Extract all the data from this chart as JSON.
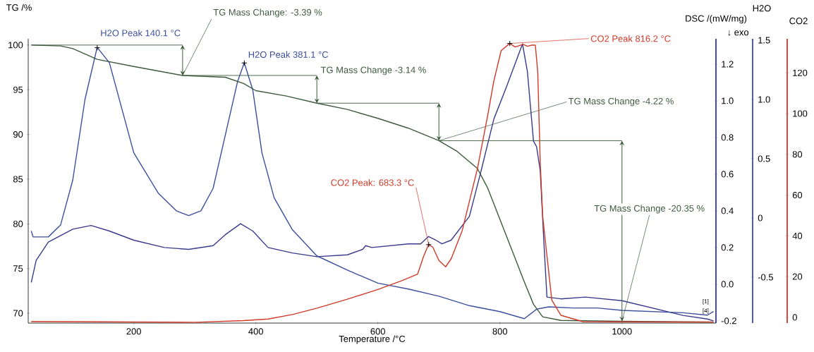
{
  "chart_data": [
    {
      "type": "line",
      "xlabel": "Temperature /°C",
      "ylabel": "TG /%",
      "y2label": "DSC /(mW/mg)",
      "y3label": "H2O",
      "xlim": [
        27,
        1154
      ],
      "xticks": [
        200,
        400,
        600,
        800,
        1000
      ],
      "ylim": [
        68.9,
        100.7
      ],
      "yticks": [
        70,
        75,
        80,
        85,
        90,
        95,
        100
      ],
      "y2lim": [
        -0.212,
        1.338
      ],
      "y2ticks": [
        -0.2,
        {
          "value": 0,
          "label": "0.0"
        },
        0.2,
        0.4,
        0.6,
        0.8,
        {
          "value": 1,
          "label": "1.0"
        },
        1.2
      ],
      "y3lim": [
        -0.887,
        1.512
      ],
      "y3ticks": [
        -0.5,
        0,
        0.5,
        {
          "value": 1,
          "label": "1.0"
        },
        1.5
      ],
      "series": [
        {
          "axis": "y",
          "color": "#3c5a3c",
          "x": [
            32,
            80,
            100,
            140,
            200,
            280,
            350,
            380,
            400,
            450,
            500,
            550,
            600,
            650,
            700,
            730,
            763,
            780,
            800,
            820,
            840,
            855,
            870,
            900,
            1000,
            1150
          ],
          "values": [
            100,
            99.9,
            99.6,
            98.4,
            97.6,
            96.6,
            96.4,
            95.7,
            94.9,
            94.3,
            93.5,
            92.8,
            91.8,
            90.7,
            89.3,
            88.1,
            86.2,
            84,
            80.5,
            77,
            73.5,
            71,
            69.6,
            69.2,
            69.1,
            69.0
          ]
        },
        {
          "axis": "y2",
          "color": "#3a3a8c",
          "x": [
            32,
            40,
            60,
            100,
            130,
            160,
            200,
            250,
            290,
            330,
            350,
            375,
            395,
            420,
            460,
            500,
            550,
            575,
            580,
            590,
            650,
            670,
            683,
            695,
            705,
            720,
            750,
            767,
            790,
            810,
            837,
            845,
            850,
            855,
            860,
            866,
            872,
            877,
            900,
            940,
            1000,
            1050,
            1100,
            1140,
            1150
          ],
          "values": [
            0.01,
            0.13,
            0.23,
            0.3,
            0.32,
            0.29,
            0.24,
            0.2,
            0.19,
            0.21,
            0.27,
            0.33,
            0.29,
            0.2,
            0.17,
            0.15,
            0.16,
            0.19,
            0.21,
            0.2,
            0.22,
            0.22,
            0.26,
            0.24,
            0.22,
            0.24,
            0.37,
            0.59,
            0.9,
            1.07,
            1.31,
            1.16,
            0.97,
            0.78,
            0.75,
            0.62,
            0.23,
            -0.07,
            -0.08,
            -0.07,
            -0.09,
            -0.13,
            -0.17,
            -0.19,
            -0.2
          ]
        },
        {
          "axis": "y3",
          "color": "#3c4f9c",
          "x": [
            32,
            35,
            40,
            60,
            80,
            100,
            120,
            140,
            160,
            180,
            200,
            240,
            270,
            290,
            310,
            330,
            350,
            370,
            381,
            395,
            410,
            430,
            460,
            500,
            550,
            600,
            650,
            700,
            750,
            800,
            840,
            860,
            880,
            920,
            960,
            1000,
            1050,
            1100,
            1140,
            1150
          ],
          "values": [
            -0.11,
            -0.16,
            -0.16,
            -0.16,
            -0.06,
            0.32,
            1.0,
            1.44,
            1.31,
            0.93,
            0.55,
            0.21,
            0.06,
            0.02,
            0.06,
            0.25,
            0.7,
            1.15,
            1.31,
            1.08,
            0.55,
            0.17,
            -0.1,
            -0.32,
            -0.44,
            -0.55,
            -0.6,
            -0.66,
            -0.74,
            -0.79,
            -0.85,
            -0.77,
            -0.75,
            -0.76,
            -0.76,
            -0.78,
            -0.79,
            -0.8,
            -0.82,
            -0.79
          ]
        }
      ],
      "annotations": [
        {
          "text": "TG Mass Change: -3.39 %",
          "x": 280,
          "y": 96.6
        },
        {
          "text": "TG Mass Change -3.14 %",
          "x": 500,
          "y": 93.5
        },
        {
          "text": "TG Mass Change -4.22 %",
          "x": 700,
          "y": 89.3
        },
        {
          "text": "TG Mass Change -20.35 %",
          "x": 1000,
          "y": 69.1
        },
        {
          "text": "H2O Peak 140.1 °C",
          "x": 140.1,
          "y": 99.7
        },
        {
          "text": "H2O Peak 381.1 °C",
          "x": 381.1,
          "y": 98.0
        },
        "↓ exo",
        "[1]",
        "[4]"
      ]
    },
    {
      "type": "line",
      "ylabel": "CO2",
      "tick_labels": "y",
      "annotations": [
        {
          "text": "CO2 Peak: 683.3 °C",
          "x": 683.3,
          "y": 35.7
        },
        {
          "text": "CO2 Peak 816.2 °C",
          "x": 816.2,
          "y": 134.4
        }
      ],
      "xlim": [
        27,
        1154
      ],
      "ylim": [
        -2.8,
        136.7
      ],
      "yticks": [
        0,
        20,
        40,
        60,
        80,
        100,
        120
      ],
      "series": [
        {
          "color": "#d03a2a",
          "x": [
            32,
            100,
            200,
            300,
            380,
            420,
            460,
            500,
            550,
            600,
            640,
            665,
            675,
            683,
            690,
            700,
            711,
            720,
            738,
            763,
            780,
            790,
            802,
            816,
            825,
            838,
            845,
            852,
            858,
            862,
            866,
            870,
            876,
            885,
            900,
            936,
            1000,
            1100,
            1150
          ],
          "values": [
            -2,
            -2.1,
            -2.3,
            -2.4,
            -1.6,
            -0.8,
            1.4,
            4.5,
            8.9,
            13.7,
            18.1,
            21.2,
            30,
            35.7,
            34.5,
            27.9,
            24.8,
            28.7,
            42.4,
            72.8,
            99.2,
            116,
            130.9,
            134.4,
            132.7,
            134,
            133,
            133.6,
            133.6,
            120.3,
            76.3,
            49.9,
            33.1,
            8.5,
            1,
            -2.1,
            -2.2,
            -2.3,
            -2.3
          ]
        }
      ]
    }
  ]
}
